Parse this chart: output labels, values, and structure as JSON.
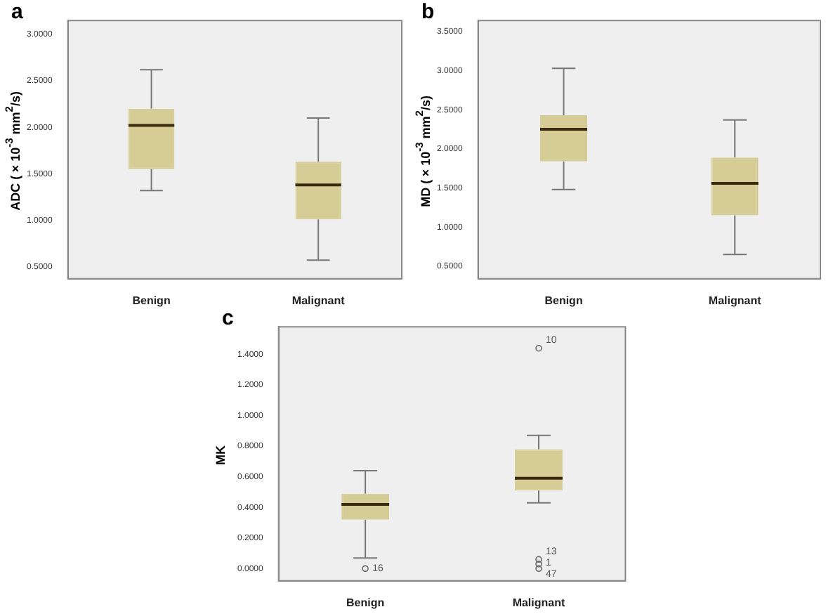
{
  "chart_data": [
    {
      "type": "box",
      "title": "a",
      "ylabel": "ADC (×10$^{-3}$ mm$^{2}$/s)",
      "categories": [
        "Benign",
        "Malignant"
      ],
      "color": "#d5cd95",
      "boxes": [
        {
          "low": 1.32,
          "q1": 1.55,
          "median": 2.02,
          "q3": 2.2,
          "high": 2.62
        },
        {
          "low": 0.57,
          "q1": 1.01,
          "median": 1.38,
          "q3": 1.63,
          "high": 2.1
        }
      ],
      "ylim": [
        0.37,
        3.15
      ],
      "yticks": [
        {
          "value": 0.5,
          "label": "0.5000"
        },
        {
          "value": 1,
          "label": "1.0000"
        },
        {
          "value": 1.5,
          "label": "1.5000"
        },
        {
          "value": 2,
          "label": "2.0000"
        },
        {
          "value": 2.5,
          "label": "2.5000"
        },
        {
          "value": 3,
          "label": "3.0000"
        }
      ],
      "grid": false
    },
    {
      "type": "box",
      "title": "b",
      "ylabel": "MD (×10$^{-3}$ mm$^{2}$/s)",
      "categories": [
        "Benign",
        "Malignant"
      ],
      "color": "#d5cd95",
      "boxes": [
        {
          "low": 1.48,
          "q1": 1.84,
          "median": 2.25,
          "q3": 2.43,
          "high": 3.03
        },
        {
          "low": 0.65,
          "q1": 1.15,
          "median": 1.56,
          "q3": 1.89,
          "high": 2.37
        }
      ],
      "ylim": [
        0.34,
        3.64
      ],
      "yticks": [
        {
          "value": 0.5,
          "label": "0.5000"
        },
        {
          "value": 1,
          "label": "1.0000"
        },
        {
          "value": 1.5,
          "label": "1.5000"
        },
        {
          "value": 2,
          "label": "2.0000"
        },
        {
          "value": 2.5,
          "label": "2.5000"
        },
        {
          "value": 3,
          "label": "3.0000"
        },
        {
          "value": 3.5,
          "label": "3.5000"
        }
      ],
      "grid": false
    },
    {
      "type": "box",
      "title": "c",
      "ylabel": "MK",
      "categories": [
        "Benign",
        "Malignant"
      ],
      "color": "#d5cd95",
      "boxes": [
        {
          "low": 0.07,
          "q1": 0.32,
          "median": 0.42,
          "q3": 0.49,
          "high": 0.64,
          "outliers": [
            0.0
          ]
        },
        {
          "low": 0.43,
          "q1": 0.51,
          "median": 0.59,
          "q3": 0.78,
          "high": 0.87,
          "outliers": [
            1.44,
            0.06,
            0.03,
            0.0
          ]
        }
      ],
      "annotations": [
        "16",
        "10",
        "13",
        "1",
        "47"
      ],
      "ylim": [
        -0.08,
        1.58
      ],
      "yticks": [
        {
          "value": 0,
          "label": "0.0000"
        },
        {
          "value": 0.2,
          "label": "0.2000"
        },
        {
          "value": 0.4,
          "label": "0.4000"
        },
        {
          "value": 0.6,
          "label": "0.6000"
        },
        {
          "value": 0.8,
          "label": "0.8000"
        },
        {
          "value": 1,
          "label": "1.0000"
        },
        {
          "value": 1.2,
          "label": "1.2000"
        },
        {
          "value": 1.4,
          "label": "1.4000"
        }
      ],
      "grid": false
    }
  ]
}
